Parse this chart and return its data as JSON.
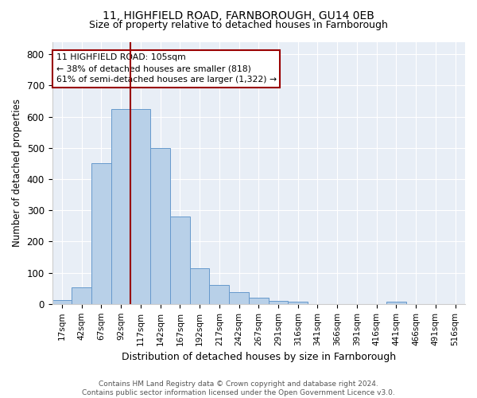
{
  "title1": "11, HIGHFIELD ROAD, FARNBOROUGH, GU14 0EB",
  "title2": "Size of property relative to detached houses in Farnborough",
  "xlabel": "Distribution of detached houses by size in Farnborough",
  "ylabel": "Number of detached properties",
  "bar_labels": [
    "17sqm",
    "42sqm",
    "67sqm",
    "92sqm",
    "117sqm",
    "142sqm",
    "167sqm",
    "192sqm",
    "217sqm",
    "242sqm",
    "267sqm",
    "291sqm",
    "316sqm",
    "341sqm",
    "366sqm",
    "391sqm",
    "416sqm",
    "441sqm",
    "466sqm",
    "491sqm",
    "516sqm"
  ],
  "bar_values": [
    12,
    53,
    450,
    625,
    625,
    500,
    280,
    115,
    60,
    37,
    20,
    10,
    8,
    0,
    0,
    0,
    0,
    8,
    0,
    0,
    0
  ],
  "bar_color": "#b8d0e8",
  "bar_edge_color": "#6699cc",
  "annotation_line1": "11 HIGHFIELD ROAD: 105sqm",
  "annotation_line2": "← 38% of detached houses are smaller (818)",
  "annotation_line3": "61% of semi-detached houses are larger (1,322) →",
  "line_color": "#990000",
  "ylim": [
    0,
    840
  ],
  "yticks": [
    0,
    100,
    200,
    300,
    400,
    500,
    600,
    700,
    800
  ],
  "bg_color": "#e8eef6",
  "footer1": "Contains HM Land Registry data © Crown copyright and database right 2024.",
  "footer2": "Contains public sector information licensed under the Open Government Licence v3.0."
}
